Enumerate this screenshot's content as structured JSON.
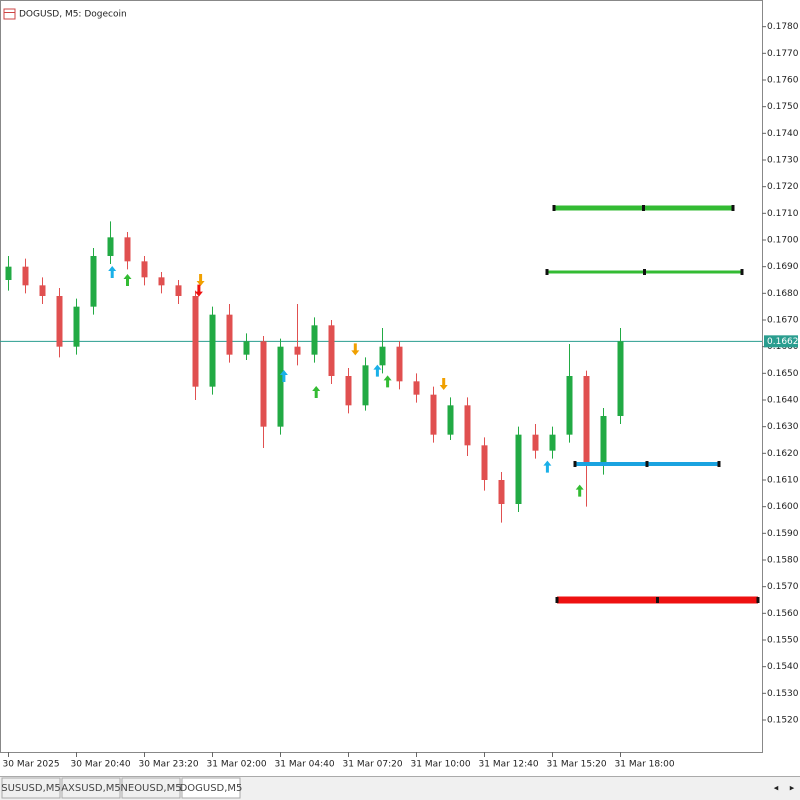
{
  "chart_data": {
    "type": "candlestick",
    "title": "DOGUSD, M5:  Dogecoin",
    "categories": [
      "30 Mar 2025",
      null,
      null,
      null,
      "30 Mar 20:40",
      null,
      null,
      null,
      "30 Mar 23:20",
      null,
      null,
      null,
      "31 Mar 02:00",
      null,
      null,
      null,
      "31 Mar 04:40",
      null,
      null,
      null,
      "31 Mar 07:20",
      null,
      null,
      null,
      "31 Mar 10:00",
      null,
      null,
      null,
      "31 Mar 12:40",
      null,
      null,
      null,
      "31 Mar 15:20",
      null,
      null,
      null,
      "31 Mar 18:00"
    ],
    "open": [
      0.1685,
      0.169,
      0.1683,
      0.1679,
      0.166,
      0.1675,
      0.1694,
      0.1701,
      0.1692,
      0.1686,
      0.1683,
      0.1679,
      0.1645,
      0.1672,
      0.1657,
      0.1662,
      0.163,
      0.166,
      0.1657,
      0.1668,
      0.1649,
      0.1638,
      0.1653,
      0.166,
      0.1647,
      0.1642,
      0.1627,
      0.1638,
      0.1623,
      0.161,
      0.1601,
      0.1627,
      0.1621,
      0.1627,
      0.1649,
      0.1616,
      0.1634
    ],
    "high": [
      0.1694,
      0.1693,
      0.1686,
      0.1682,
      0.1678,
      0.1697,
      0.1707,
      0.1703,
      0.1694,
      0.1688,
      0.1685,
      0.1681,
      0.1675,
      0.1676,
      0.1665,
      0.1664,
      0.1663,
      0.1676,
      0.1671,
      0.167,
      0.1652,
      0.1656,
      0.1667,
      0.1662,
      0.165,
      0.1645,
      0.1641,
      0.1641,
      0.1626,
      0.1613,
      0.163,
      0.1631,
      0.163,
      0.1661,
      0.1651,
      0.1637,
      0.1667
    ],
    "low": [
      0.1681,
      0.168,
      0.1676,
      0.1656,
      0.1657,
      0.1672,
      0.1691,
      0.1689,
      0.1683,
      0.168,
      0.1676,
      0.164,
      0.1642,
      0.1654,
      0.1655,
      0.1622,
      0.1627,
      0.1653,
      0.1654,
      0.1646,
      0.1635,
      0.1636,
      0.165,
      0.1644,
      0.1639,
      0.1624,
      0.1625,
      0.1619,
      0.1606,
      0.1594,
      0.1598,
      0.1618,
      0.1618,
      0.1624,
      0.16,
      0.1612,
      0.1631
    ],
    "close": [
      0.169,
      0.1683,
      0.1679,
      0.166,
      0.1675,
      0.1694,
      0.1701,
      0.1692,
      0.1686,
      0.1683,
      0.1679,
      0.1645,
      0.1672,
      0.1657,
      0.1662,
      0.163,
      0.166,
      0.1657,
      0.1668,
      0.1649,
      0.1638,
      0.1653,
      0.166,
      0.1647,
      0.1642,
      0.1627,
      0.1638,
      0.1623,
      0.161,
      0.1601,
      0.1627,
      0.1621,
      0.1627,
      0.1649,
      0.1616,
      0.1634,
      0.1662
    ],
    "up_color": "#22aa44",
    "down_color": "#e05050",
    "ylim": [
      0.1508,
      0.179
    ],
    "yticks": [
      {
        "value": 0.178,
        "label": "0.1780"
      },
      {
        "value": 0.177,
        "label": "0.1770"
      },
      {
        "value": 0.176,
        "label": "0.1760"
      },
      {
        "value": 0.175,
        "label": "0.1750"
      },
      {
        "value": 0.174,
        "label": "0.1740"
      },
      {
        "value": 0.173,
        "label": "0.1730"
      },
      {
        "value": 0.172,
        "label": "0.1720"
      },
      {
        "value": 0.171,
        "label": "0.1710"
      },
      {
        "value": 0.17,
        "label": "0.1700"
      },
      {
        "value": 0.169,
        "label": "0.1690"
      },
      {
        "value": 0.168,
        "label": "0.1680"
      },
      {
        "value": 0.167,
        "label": "0.1670"
      },
      {
        "value": 0.166,
        "label": "0.1660"
      },
      {
        "value": 0.165,
        "label": "0.1650"
      },
      {
        "value": 0.164,
        "label": "0.1640"
      },
      {
        "value": 0.163,
        "label": "0.1630"
      },
      {
        "value": 0.162,
        "label": "0.1620"
      },
      {
        "value": 0.161,
        "label": "0.1610"
      },
      {
        "value": 0.16,
        "label": "0.1600"
      },
      {
        "value": 0.159,
        "label": "0.1590"
      },
      {
        "value": 0.158,
        "label": "0.1580"
      },
      {
        "value": 0.157,
        "label": "0.1570"
      },
      {
        "value": 0.156,
        "label": "0.1560"
      },
      {
        "value": 0.155,
        "label": "0.1550"
      },
      {
        "value": 0.154,
        "label": "0.1540"
      },
      {
        "value": 0.153,
        "label": "0.1530"
      },
      {
        "value": 0.152,
        "label": "0.1520"
      }
    ],
    "current_price": {
      "value": 0.1662,
      "label": "0.1662",
      "color": "#2a9d8f"
    },
    "levels": [
      {
        "value": 0.1712,
        "color": "#33bb33"
      },
      {
        "value": 0.1688,
        "color": "#33bb33"
      },
      {
        "value": 0.1616,
        "color": "#1aa3e0"
      },
      {
        "value": 0.1565,
        "color": "#ee1111"
      }
    ],
    "signals": [
      {
        "x": 6.1,
        "y": 0.1688,
        "direction": "up",
        "color": "#1ab0e8"
      },
      {
        "x": 7.0,
        "y": 0.1685,
        "direction": "up",
        "color": "#33bb33"
      },
      {
        "x": 11.3,
        "y": 0.1685,
        "direction": "down",
        "color": "#f0a000"
      },
      {
        "x": 11.2,
        "y": 0.1681,
        "direction": "down",
        "color": "#ee1111"
      },
      {
        "x": 16.2,
        "y": 0.1649,
        "direction": "up",
        "color": "#1ab0e8"
      },
      {
        "x": 18.1,
        "y": 0.1643,
        "direction": "up",
        "color": "#33bb33"
      },
      {
        "x": 20.4,
        "y": 0.1659,
        "direction": "down",
        "color": "#f0a000"
      },
      {
        "x": 21.7,
        "y": 0.1651,
        "direction": "up",
        "color": "#1ab0e8"
      },
      {
        "x": 22.3,
        "y": 0.1647,
        "direction": "up",
        "color": "#33bb33"
      },
      {
        "x": 25.6,
        "y": 0.1646,
        "direction": "down",
        "color": "#f0a000"
      },
      {
        "x": 31.7,
        "y": 0.1615,
        "direction": "up",
        "color": "#1ab0e8"
      },
      {
        "x": 33.6,
        "y": 0.1606,
        "direction": "up",
        "color": "#33bb33"
      }
    ]
  },
  "tabs": [
    {
      "label": "SUSUSD,M5",
      "active": false
    },
    {
      "label": "AXSUSD,M5",
      "active": false
    },
    {
      "label": "NEOUSD,M5",
      "active": false
    },
    {
      "label": "DOGUSD,M5",
      "active": true
    }
  ]
}
